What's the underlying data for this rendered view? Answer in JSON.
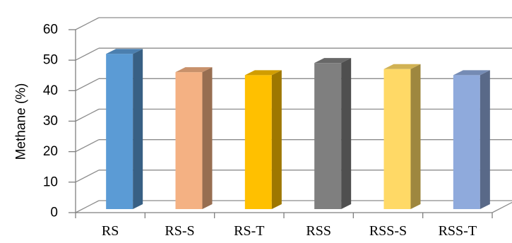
{
  "chart_data": {
    "type": "bar",
    "style": "3d-column",
    "categories": [
      "RS",
      "RS-S",
      "RS-T",
      "RSS",
      "RSS-S",
      "RSS-T"
    ],
    "values": [
      53,
      47,
      46,
      50,
      48,
      46
    ],
    "title": "",
    "xlabel": "",
    "ylabel": "Methane (%)",
    "ylim": [
      0,
      60
    ],
    "yticks": [
      "0",
      "10",
      "20",
      "30",
      "40",
      "50",
      "60"
    ],
    "grid": true,
    "legend": "none",
    "colors": [
      "#5B9BD5",
      "#F4B183",
      "#FFC000",
      "#7F7F7F",
      "#FFD966",
      "#8FAADC"
    ]
  }
}
